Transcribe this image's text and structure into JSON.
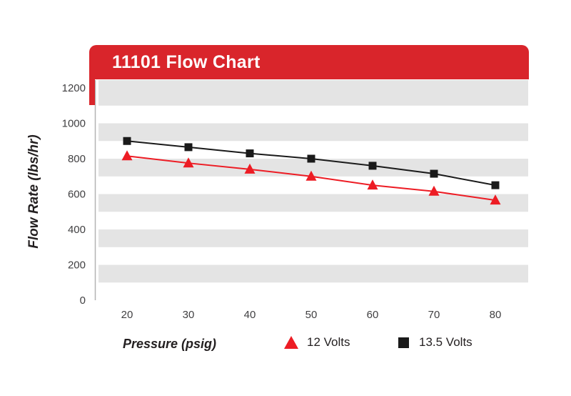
{
  "header": {
    "title": "11101 Flow Chart"
  },
  "axes": {
    "y_title": "Flow Rate (lbs/hr)",
    "x_title": "Pressure (psig)"
  },
  "legend": [
    {
      "label": "12 Volts",
      "marker": "triangle",
      "color": "#ed1c24"
    },
    {
      "label": "13.5 Volts",
      "marker": "square",
      "color": "#1a1a1a"
    }
  ],
  "colors": {
    "header_red": "#d9252b",
    "band_gray": "#e4e4e4",
    "axis_line": "#b3b3b3",
    "tick_text": "#414042",
    "series_red": "#ed1c24",
    "series_black": "#1a1a1a"
  },
  "chart_data": {
    "type": "line",
    "title": "11101 Flow Chart",
    "xlabel": "Pressure (psig)",
    "ylabel": "Flow Rate (lbs/hr)",
    "x": [
      20,
      30,
      40,
      50,
      60,
      70,
      80
    ],
    "series": [
      {
        "name": "13.5 Volts",
        "marker": "square",
        "color": "#1a1a1a",
        "values": [
          900,
          865,
          830,
          800,
          760,
          715,
          650
        ]
      },
      {
        "name": "12 Volts",
        "marker": "triangle",
        "color": "#ed1c24",
        "values": [
          815,
          775,
          740,
          700,
          650,
          615,
          565
        ]
      }
    ],
    "xlim": [
      20,
      80
    ],
    "ylim": [
      0,
      1200
    ],
    "yticks": [
      0,
      200,
      400,
      600,
      800,
      1000,
      1200
    ],
    "grid": "horizontal-bands",
    "band_step": 100,
    "legend_position": "bottom"
  }
}
